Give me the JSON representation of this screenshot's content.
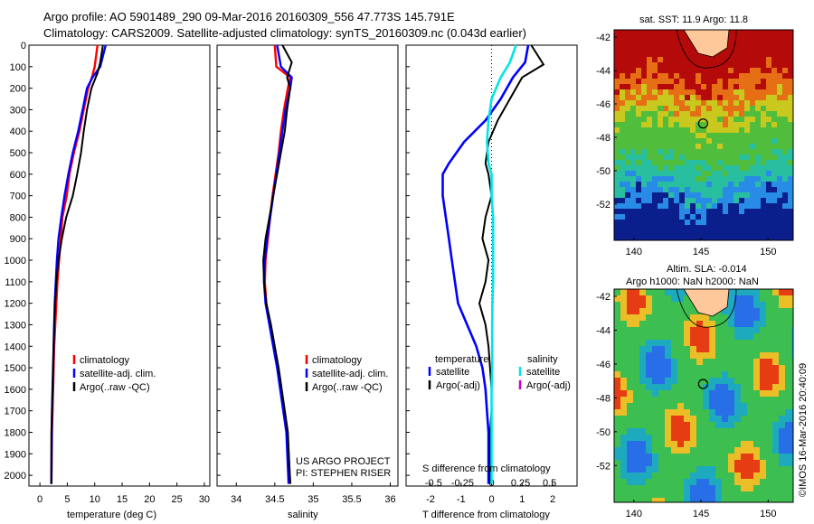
{
  "header": {
    "line1": "Argo profile: AO 5901489_290 09-Mar-2016 20160309_556 47.773S 145.791E",
    "line2": "Climatology: CARS2009. Satellite-adjusted climatology: synTS_20160309.nc (0.043d earlier)"
  },
  "project": {
    "line1": "US ARGO PROJECT",
    "line2": "PI: STEPHEN RISER"
  },
  "maps": {
    "sst_title": "sat. SST: 11.9 Argo: 11.8",
    "sla_title1": "Altim. SLA: -0.014",
    "sla_title2": "Argo h1000: NaN h2000: NaN",
    "lat_ticks": [
      "-42",
      "-44",
      "-46",
      "-48",
      "-50",
      "-52"
    ],
    "lon_ticks": [
      "140",
      "145",
      "150"
    ],
    "credit": "©IMOS 16-Mar-2016 20:40:09"
  },
  "chart_data": [
    {
      "type": "line",
      "xlabel": "temperature (deg C)",
      "xlim": [
        -2,
        31
      ],
      "x_ticks": [
        "0",
        "5",
        "10",
        "15",
        "20",
        "25",
        "30"
      ],
      "ylim": [
        0,
        2050
      ],
      "y_ticks": [
        "0",
        "100",
        "200",
        "300",
        "400",
        "500",
        "600",
        "700",
        "800",
        "900",
        "1000",
        "1100",
        "1200",
        "1300",
        "1400",
        "1500",
        "1600",
        "1700",
        "1800",
        "1900",
        "2000"
      ],
      "legend": [
        "climatology",
        "satellite-adj. clim.",
        "Argo(..raw -QC)"
      ],
      "series": [
        {
          "name": "climatology",
          "color": "#ff0000",
          "x": [
            10.5,
            10.0,
            9.5,
            8.8,
            8.0,
            7.2,
            6.2,
            5.4,
            4.9,
            4.1,
            3.8,
            3.5,
            3.2,
            3.0,
            2.8,
            2.6,
            2.5,
            2.4,
            2.3,
            2.2,
            2.1
          ],
          "y": [
            0,
            100,
            150,
            200,
            300,
            400,
            500,
            600,
            700,
            800,
            900,
            1000,
            1100,
            1200,
            1300,
            1400,
            1500,
            1600,
            1700,
            1800,
            2040
          ]
        },
        {
          "name": "satellite-adj. clim.",
          "color": "#0000ff",
          "x": [
            12.0,
            11.0,
            9.6,
            8.6,
            7.8,
            7.0,
            6.0,
            5.2,
            4.5,
            3.9,
            3.4,
            3.1,
            2.9,
            2.7,
            2.6,
            2.5,
            2.4,
            2.3,
            2.2,
            2.15,
            2.1
          ],
          "y": [
            0,
            100,
            150,
            200,
            300,
            400,
            500,
            600,
            700,
            800,
            900,
            1000,
            1100,
            1200,
            1300,
            1400,
            1500,
            1600,
            1700,
            1800,
            2040
          ]
        },
        {
          "name": "Argo(..raw -QC)",
          "color": "#000000",
          "x": [
            11.5,
            11.0,
            10.5,
            9.4,
            8.6,
            8.0,
            7.5,
            6.8,
            6.0,
            4.8,
            4.0,
            3.4,
            3.0,
            2.8,
            2.6,
            2.5,
            2.4,
            2.3,
            2.2,
            2.1,
            2.1
          ],
          "y": [
            0,
            80,
            130,
            200,
            300,
            400,
            500,
            600,
            700,
            800,
            900,
            1000,
            1100,
            1200,
            1300,
            1400,
            1500,
            1600,
            1700,
            1800,
            2040
          ]
        }
      ]
    },
    {
      "type": "line",
      "xlabel": "salinity",
      "xlim": [
        33.75,
        36.1
      ],
      "x_ticks": [
        "34",
        "34.5",
        "35",
        "35.5",
        "36"
      ],
      "ylim": [
        0,
        2050
      ],
      "legend": [
        "climatology",
        "satellite-adj. clim.",
        "Argo(..raw -QC)"
      ],
      "series": [
        {
          "name": "climatology",
          "color": "#ff0000",
          "x": [
            34.5,
            34.52,
            34.7,
            34.67,
            34.62,
            34.58,
            34.55,
            34.51,
            34.47,
            34.44,
            34.41,
            34.38,
            34.37,
            34.39,
            34.44,
            34.49,
            34.54,
            34.58,
            34.62,
            34.66,
            34.7
          ],
          "y": [
            0,
            100,
            150,
            200,
            300,
            400,
            500,
            600,
            700,
            800,
            900,
            1000,
            1100,
            1200,
            1300,
            1400,
            1500,
            1600,
            1700,
            1800,
            2040
          ]
        },
        {
          "name": "satellite-adj. clim.",
          "color": "#0000ff",
          "x": [
            34.53,
            34.58,
            34.72,
            34.7,
            34.64,
            34.6,
            34.56,
            34.52,
            34.48,
            34.44,
            34.4,
            34.37,
            34.36,
            34.38,
            34.43,
            34.48,
            34.53,
            34.57,
            34.61,
            34.65,
            34.68
          ],
          "y": [
            0,
            100,
            150,
            200,
            300,
            400,
            500,
            600,
            700,
            800,
            900,
            1000,
            1100,
            1200,
            1300,
            1400,
            1500,
            1600,
            1700,
            1800,
            2040
          ]
        },
        {
          "name": "Argo(..raw -QC)",
          "color": "#000000",
          "x": [
            34.6,
            34.72,
            34.66,
            34.7,
            34.66,
            34.63,
            34.58,
            34.53,
            34.48,
            34.43,
            34.38,
            34.35,
            34.36,
            34.39,
            34.45,
            34.5,
            34.55,
            34.59,
            34.63,
            34.67,
            34.7
          ],
          "y": [
            0,
            80,
            150,
            200,
            300,
            400,
            500,
            600,
            700,
            800,
            900,
            1000,
            1100,
            1200,
            1300,
            1400,
            1500,
            1600,
            1700,
            1800,
            2040
          ]
        }
      ]
    },
    {
      "type": "line",
      "xlabel": "T difference from climatology",
      "xlabel2": "S difference from climatology",
      "xlim": [
        -2.8,
        2.8
      ],
      "x_ticks": [
        "-2",
        "-1",
        "0",
        "1",
        "2"
      ],
      "s_ticks": [
        "-0.5",
        "-0.25",
        "0",
        "0.25",
        "0.5"
      ],
      "ylim": [
        0,
        2050
      ],
      "legend_temp_title": "temperature",
      "legend_sal_title": "salinity",
      "legend_temp": [
        "satellite",
        "Argo(-adj)"
      ],
      "legend_sal": [
        "satellite",
        "Argo(-adj)"
      ],
      "series": [
        {
          "name": "satellite",
          "group": "temperature",
          "color": "#0000ff",
          "x": [
            1.2,
            1.1,
            0.7,
            0.3,
            -0.2,
            -0.9,
            -1.4,
            -1.6,
            -1.6,
            -1.5,
            -1.4,
            -1.3,
            -1.2,
            -1.1,
            -0.8,
            -0.5,
            -0.3,
            -0.2,
            -0.15,
            -0.1,
            -0.1
          ],
          "y": [
            0,
            80,
            150,
            250,
            350,
            450,
            550,
            600,
            700,
            800,
            900,
            1000,
            1100,
            1200,
            1300,
            1400,
            1500,
            1600,
            1700,
            1800,
            2040
          ]
        },
        {
          "name": "Argo(-adj)",
          "group": "temperature",
          "color": "#000000",
          "x": [
            1.3,
            1.7,
            1.0,
            0.6,
            0.2,
            -0.1,
            -0.2,
            -0.1,
            0.0,
            -0.2,
            -0.3,
            -0.1,
            -0.2,
            -0.4,
            -0.2,
            -0.1,
            -0.05,
            0.0,
            0.0,
            -0.05,
            -0.05
          ],
          "y": [
            0,
            90,
            150,
            250,
            350,
            450,
            550,
            600,
            700,
            800,
            900,
            1000,
            1100,
            1200,
            1300,
            1400,
            1500,
            1600,
            1700,
            1800,
            2040
          ]
        },
        {
          "name": "satellite",
          "group": "salinity",
          "color": "#00e5e5",
          "x": [
            0.8,
            0.6,
            0.3,
            0.0,
            -0.1,
            -0.15,
            -0.1,
            0.0,
            0.0,
            0.05,
            0.05,
            0.05,
            0.05,
            0.03,
            0.02,
            0.02,
            0.02,
            0.0,
            0.0,
            0.0,
            0.0
          ],
          "y": [
            0,
            80,
            150,
            250,
            350,
            450,
            550,
            600,
            700,
            800,
            900,
            1000,
            1100,
            1200,
            1300,
            1400,
            1500,
            1600,
            1700,
            1800,
            2040
          ]
        }
      ]
    }
  ]
}
